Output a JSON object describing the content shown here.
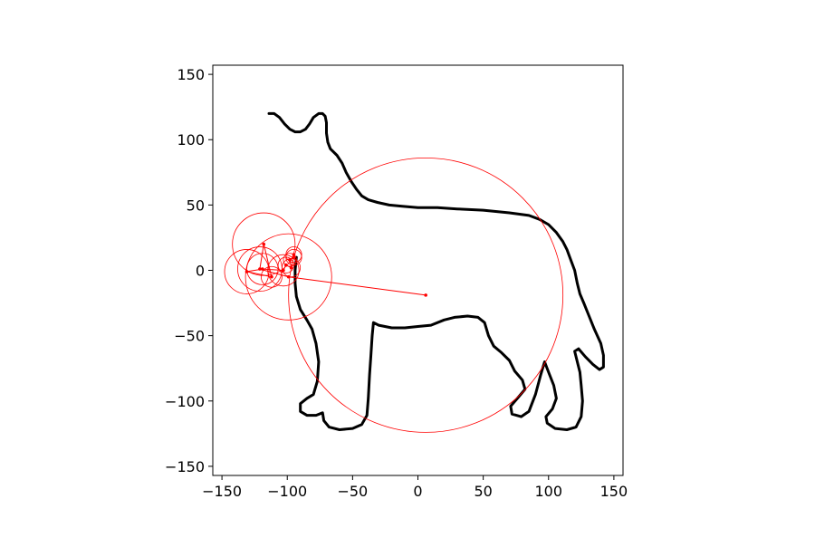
{
  "chart_data": {
    "type": "line",
    "title": "",
    "xlabel": "",
    "ylabel": "",
    "xlim": [
      -157,
      157
    ],
    "ylim": [
      -157,
      157
    ],
    "x_ticks": [
      -150,
      -100,
      -50,
      0,
      50,
      100,
      150
    ],
    "y_ticks": [
      -150,
      -100,
      -50,
      0,
      50,
      100,
      150
    ],
    "x_tick_labels": [
      "−150",
      "−100",
      "−50",
      "0",
      "50",
      "100",
      "150"
    ],
    "y_tick_labels": [
      "−150",
      "−100",
      "−50",
      "0",
      "50",
      "100",
      "150"
    ],
    "grid": false,
    "colors": {
      "outline": "#000000",
      "epicycles": "#ff0000",
      "axes": "#000000"
    },
    "series": [
      {
        "role": "outline",
        "points": [
          [
            -114,
            120
          ],
          [
            -110,
            120
          ],
          [
            -106,
            117
          ],
          [
            -102,
            112
          ],
          [
            -98,
            108
          ],
          [
            -94,
            106
          ],
          [
            -90,
            106
          ],
          [
            -86,
            108
          ],
          [
            -83,
            112
          ],
          [
            -80,
            117
          ],
          [
            -76,
            120
          ],
          [
            -73,
            120
          ],
          [
            -71,
            118
          ],
          [
            -70,
            113
          ],
          [
            -70,
            105
          ],
          [
            -69,
            98
          ],
          [
            -67,
            93
          ],
          [
            -62,
            88
          ],
          [
            -58,
            82
          ],
          [
            -55,
            75
          ],
          [
            -51,
            68
          ],
          [
            -47,
            62
          ],
          [
            -43,
            57
          ],
          [
            -38,
            54
          ],
          [
            -31,
            52
          ],
          [
            -22,
            50
          ],
          [
            -12,
            49
          ],
          [
            0,
            48
          ],
          [
            15,
            48
          ],
          [
            30,
            47
          ],
          [
            50,
            46
          ],
          [
            70,
            44
          ],
          [
            85,
            42
          ],
          [
            93,
            39
          ],
          [
            100,
            35
          ],
          [
            106,
            29
          ],
          [
            111,
            22
          ],
          [
            114,
            16
          ],
          [
            117,
            8
          ],
          [
            120,
            0
          ],
          [
            122,
            -10
          ],
          [
            124,
            -18
          ],
          [
            127,
            -25
          ],
          [
            131,
            -35
          ],
          [
            135,
            -45
          ],
          [
            140,
            -56
          ],
          [
            142,
            -65
          ],
          [
            142,
            -74
          ],
          [
            139,
            -76
          ],
          [
            134,
            -72
          ],
          [
            128,
            -66
          ],
          [
            123,
            -60
          ],
          [
            120,
            -62
          ],
          [
            122,
            -70
          ],
          [
            124,
            -78
          ],
          [
            125,
            -88
          ],
          [
            126,
            -100
          ],
          [
            125,
            -112
          ],
          [
            121,
            -120
          ],
          [
            114,
            -122
          ],
          [
            105,
            -121
          ],
          [
            99,
            -117
          ],
          [
            98,
            -112
          ],
          [
            103,
            -106
          ],
          [
            106,
            -98
          ],
          [
            104,
            -88
          ],
          [
            100,
            -78
          ],
          [
            97,
            -70
          ],
          [
            94,
            -80
          ],
          [
            90,
            -95
          ],
          [
            85,
            -108
          ],
          [
            79,
            -112
          ],
          [
            72,
            -110
          ],
          [
            71,
            -104
          ],
          [
            77,
            -97
          ],
          [
            82,
            -91
          ],
          [
            80,
            -84
          ],
          [
            74,
            -77
          ],
          [
            70,
            -69
          ],
          [
            64,
            -63
          ],
          [
            58,
            -58
          ],
          [
            54,
            -50
          ],
          [
            51,
            -40
          ],
          [
            46,
            -36
          ],
          [
            38,
            -35
          ],
          [
            28,
            -36
          ],
          [
            20,
            -38
          ],
          [
            10,
            -42
          ],
          [
            0,
            -43
          ],
          [
            -10,
            -44
          ],
          [
            -20,
            -44
          ],
          [
            -30,
            -42
          ],
          [
            -34,
            -40
          ],
          [
            -35,
            -50
          ],
          [
            -36,
            -65
          ],
          [
            -37,
            -80
          ],
          [
            -38,
            -98
          ],
          [
            -39,
            -111
          ],
          [
            -43,
            -118
          ],
          [
            -50,
            -121
          ],
          [
            -60,
            -122
          ],
          [
            -68,
            -120
          ],
          [
            -72,
            -115
          ],
          [
            -73,
            -109
          ],
          [
            -78,
            -111
          ],
          [
            -85,
            -111
          ],
          [
            -90,
            -108
          ],
          [
            -90,
            -102
          ],
          [
            -85,
            -98
          ],
          [
            -80,
            -95
          ],
          [
            -77,
            -85
          ],
          [
            -76,
            -70
          ],
          [
            -78,
            -56
          ],
          [
            -81,
            -45
          ],
          [
            -85,
            -38
          ],
          [
            -90,
            -30
          ],
          [
            -93,
            -20
          ],
          [
            -94,
            -10
          ],
          [
            -94,
            0
          ],
          [
            -93,
            10
          ]
        ]
      },
      {
        "role": "epicycles",
        "centers": [
          [
            6,
            -19
          ],
          [
            -99,
            -5
          ],
          [
            -121,
            1
          ],
          [
            -118,
            20
          ],
          [
            -112,
            -5
          ],
          [
            -131,
            -1
          ],
          [
            -119,
            1
          ],
          [
            -103,
            0
          ],
          [
            -101,
            4
          ],
          [
            -97,
            2
          ],
          [
            -98,
            8
          ],
          [
            -95,
            10
          ],
          [
            -95,
            12
          ]
        ],
        "radii": [
          105,
          33,
          17,
          24,
          8,
          17,
          12,
          12,
          6,
          7,
          5,
          6,
          6
        ]
      }
    ]
  }
}
